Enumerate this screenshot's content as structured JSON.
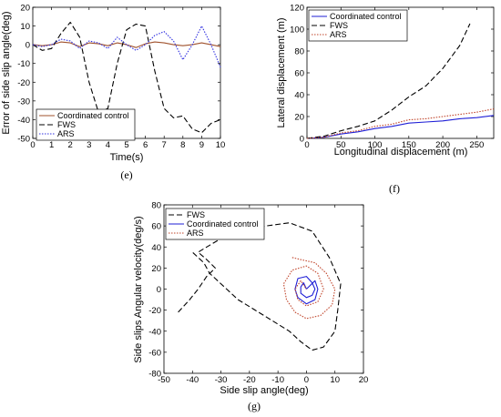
{
  "colors": {
    "coordinated": "#1f1fd6",
    "fws": "#000000",
    "ars": "#c0442a",
    "ars_e": "#3030e0",
    "coord_e": "#a0522d"
  },
  "chart_data": [
    {
      "id": "e",
      "type": "line",
      "caption": "(e)",
      "xlabel": "Time(s)",
      "ylabel": "Error of side slip angle(deg)",
      "xlim": [
        0,
        10
      ],
      "ylim": [
        -50,
        20
      ],
      "xticks": [
        0,
        1,
        2,
        3,
        4,
        5,
        6,
        7,
        8,
        9,
        10
      ],
      "yticks": [
        -50,
        -40,
        -30,
        -20,
        -10,
        0,
        10,
        20
      ],
      "grid": false,
      "legend": "bottom-left",
      "series": [
        {
          "name": "Coordinated control",
          "style": "solid",
          "color": "#a0522d",
          "x": [
            0,
            0.5,
            1,
            1.5,
            2,
            2.5,
            3,
            3.5,
            4,
            4.5,
            5,
            5.5,
            6,
            6.5,
            7,
            7.5,
            8,
            8.5,
            9,
            9.5,
            10
          ],
          "y": [
            0,
            -0.5,
            0,
            1.5,
            1,
            -1,
            1,
            0.5,
            -0.5,
            1,
            0,
            -1.5,
            0.5,
            1.5,
            1,
            0,
            -0.5,
            0,
            1,
            0,
            -1
          ]
        },
        {
          "name": "FWS",
          "style": "dashed",
          "color": "#000000",
          "x": [
            0,
            0.5,
            1,
            1.5,
            2,
            2.5,
            3,
            3.5,
            4,
            4.5,
            5,
            5.5,
            6,
            6.5,
            7,
            7.5,
            8,
            8.5,
            9,
            9.5,
            10
          ],
          "y": [
            0,
            -3,
            -2,
            6,
            12,
            4,
            -20,
            -36,
            -34,
            -10,
            8,
            11,
            10,
            -14,
            -34,
            -39,
            -38,
            -45,
            -47,
            -42,
            -40
          ]
        },
        {
          "name": "ARS",
          "style": "dotted",
          "color": "#3030e0",
          "x": [
            0,
            0.5,
            1,
            1.5,
            2,
            2.5,
            3,
            3.5,
            4,
            4.5,
            5,
            5.5,
            6,
            6.5,
            7,
            7.5,
            8,
            8.5,
            9,
            9.5,
            10
          ],
          "y": [
            0,
            -1,
            0,
            3,
            2,
            -2,
            2,
            1,
            -2,
            4,
            0,
            -3,
            0,
            5,
            7,
            2,
            -8,
            0,
            10,
            0,
            -12
          ]
        }
      ]
    },
    {
      "id": "f",
      "type": "line",
      "caption": "(f)",
      "xlabel": "Longitudinal displacement (m)",
      "ylabel": "Lateral displacement (m)",
      "xlim": [
        0,
        275
      ],
      "ylim": [
        0,
        120
      ],
      "xticks": [
        0,
        50,
        100,
        150,
        200,
        250
      ],
      "yticks": [
        0,
        20,
        40,
        60,
        80,
        100,
        120
      ],
      "grid": false,
      "legend": "top-left",
      "series": [
        {
          "name": "Coordinated control",
          "style": "solid",
          "color": "#1f1fd6",
          "x": [
            0,
            25,
            50,
            75,
            100,
            125,
            150,
            175,
            200,
            225,
            250,
            275
          ],
          "y": [
            0,
            1,
            4,
            6,
            9,
            11,
            14,
            15,
            16,
            18,
            19,
            21
          ]
        },
        {
          "name": "FWS",
          "style": "dashed",
          "color": "#000000",
          "x": [
            0,
            25,
            50,
            75,
            100,
            125,
            150,
            175,
            200,
            225,
            240
          ],
          "y": [
            0,
            2,
            7,
            11,
            16,
            26,
            38,
            48,
            64,
            85,
            105
          ]
        },
        {
          "name": "ARS",
          "style": "dotted",
          "color": "#c0442a",
          "x": [
            0,
            25,
            50,
            75,
            100,
            125,
            150,
            175,
            200,
            225,
            250,
            275
          ],
          "y": [
            0,
            1,
            5,
            7,
            11,
            13,
            17,
            18,
            20,
            22,
            24,
            27
          ]
        }
      ]
    },
    {
      "id": "g",
      "type": "line",
      "caption": "(g)",
      "xlabel": "Side slip angle(deg)",
      "ylabel": "Side slips Angular velocity(deg/s)",
      "xlim": [
        -50,
        20
      ],
      "ylim": [
        -80,
        80
      ],
      "xticks": [
        -50,
        -40,
        -30,
        -20,
        -10,
        0,
        10,
        20
      ],
      "yticks": [
        -80,
        -60,
        -40,
        -20,
        0,
        20,
        40,
        60,
        80
      ],
      "grid": false,
      "legend": "top-left",
      "series": [
        {
          "name": "FWS",
          "style": "dashed",
          "color": "#000000",
          "x": [
            -45,
            -41,
            -38,
            -35,
            -32,
            -35,
            -38,
            -35,
            -30,
            -22,
            -14,
            -6,
            2,
            8,
            12,
            11,
            10,
            6,
            2,
            -2,
            -6,
            -12,
            -18,
            -24,
            -28,
            -32,
            -34,
            -36,
            -40
          ],
          "y": [
            -22,
            -10,
            0,
            12,
            20,
            28,
            35,
            40,
            48,
            55,
            60,
            63,
            55,
            30,
            5,
            -20,
            -40,
            -55,
            -58,
            -50,
            -40,
            -30,
            -20,
            -10,
            0,
            10,
            15,
            25,
            35
          ]
        },
        {
          "name": "Coordinated control",
          "style": "solid",
          "color": "#1f1fd6",
          "x": [
            0,
            3,
            4,
            3,
            0,
            -3,
            -4,
            -3,
            0,
            2,
            3,
            2,
            0,
            -2,
            -2,
            -1,
            0
          ],
          "y": [
            0,
            8,
            0,
            -10,
            -14,
            -8,
            0,
            10,
            12,
            6,
            0,
            -6,
            -8,
            -4,
            2,
            6,
            0
          ]
        },
        {
          "name": "ARS",
          "style": "dotted",
          "color": "#c0442a",
          "x": [
            -5,
            -2,
            3,
            7,
            10,
            9,
            5,
            0,
            -4,
            -7,
            -8,
            -5,
            0,
            4,
            6,
            4,
            0,
            -3,
            -4,
            -2,
            0
          ],
          "y": [
            30,
            28,
            25,
            15,
            0,
            -15,
            -25,
            -28,
            -22,
            -10,
            5,
            18,
            22,
            15,
            0,
            -12,
            -16,
            -10,
            0,
            8,
            0
          ]
        }
      ]
    }
  ]
}
